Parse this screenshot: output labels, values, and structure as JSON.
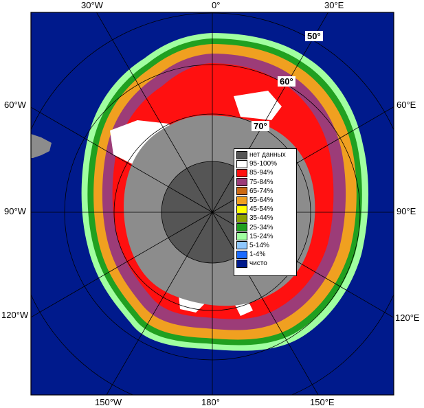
{
  "map": {
    "longitude_labels": {
      "top": [
        "30°W",
        "0°",
        "30°E"
      ],
      "left": [
        "60°W",
        "90°W",
        "120°W"
      ],
      "right": [
        "60°E",
        "90°E",
        "120°E"
      ],
      "bottom": [
        "150°W",
        "180°",
        "150°E"
      ]
    },
    "latitude_labels": [
      "50°",
      "60°",
      "70°"
    ],
    "colors": {
      "ocean": "#001a8c",
      "continent": "#8c8c8c",
      "nodata": "#555555",
      "grid": "#000000"
    }
  },
  "legend": {
    "items": [
      {
        "label": "нет данных",
        "color": "#555555"
      },
      {
        "label": "95-100%",
        "color": "#ffffff"
      },
      {
        "label": "85-94%",
        "color": "#ff1010"
      },
      {
        "label": "75-84%",
        "color": "#9c3c78"
      },
      {
        "label": "65-74%",
        "color": "#cc6a14"
      },
      {
        "label": "55-64%",
        "color": "#f0a020"
      },
      {
        "label": "45-54%",
        "color": "#ffff00"
      },
      {
        "label": "35-44%",
        "color": "#8ca000"
      },
      {
        "label": "25-34%",
        "color": "#20a020"
      },
      {
        "label": "15-24%",
        "color": "#a0ffa0"
      },
      {
        "label": "5-14%",
        "color": "#90c8ff"
      },
      {
        "label": "1-4%",
        "color": "#1a6aff"
      },
      {
        "label": "чисто",
        "color": "#001a8c"
      }
    ]
  }
}
